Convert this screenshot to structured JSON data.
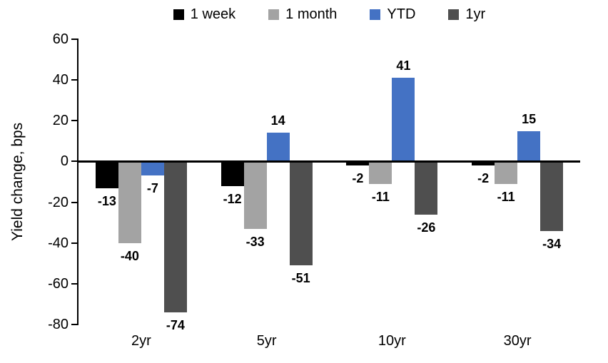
{
  "chart_data": {
    "type": "bar",
    "title": "",
    "xlabel": "",
    "ylabel": "Yield change, bps",
    "categories": [
      "2yr",
      "5yr",
      "10yr",
      "30yr"
    ],
    "series": [
      {
        "name": "1 week",
        "color": "#000000",
        "values": [
          -13,
          -12,
          -2,
          -2
        ]
      },
      {
        "name": "1 month",
        "color": "#A3A3A3",
        "values": [
          -40,
          -33,
          -11,
          -11
        ]
      },
      {
        "name": "YTD",
        "color": "#4472C4",
        "values": [
          -7,
          14,
          41,
          15
        ]
      },
      {
        "name": "1yr",
        "color": "#4F4F4F",
        "values": [
          -74,
          -51,
          -26,
          -34
        ]
      }
    ],
    "ylim": [
      -80,
      60
    ],
    "yticks": [
      60,
      40,
      20,
      0,
      -20,
      -40,
      -60,
      -80
    ],
    "grid": false,
    "legend_position": "top",
    "data_labels": true,
    "axis_color": "#000000",
    "background_color": "#FFFFFF"
  }
}
